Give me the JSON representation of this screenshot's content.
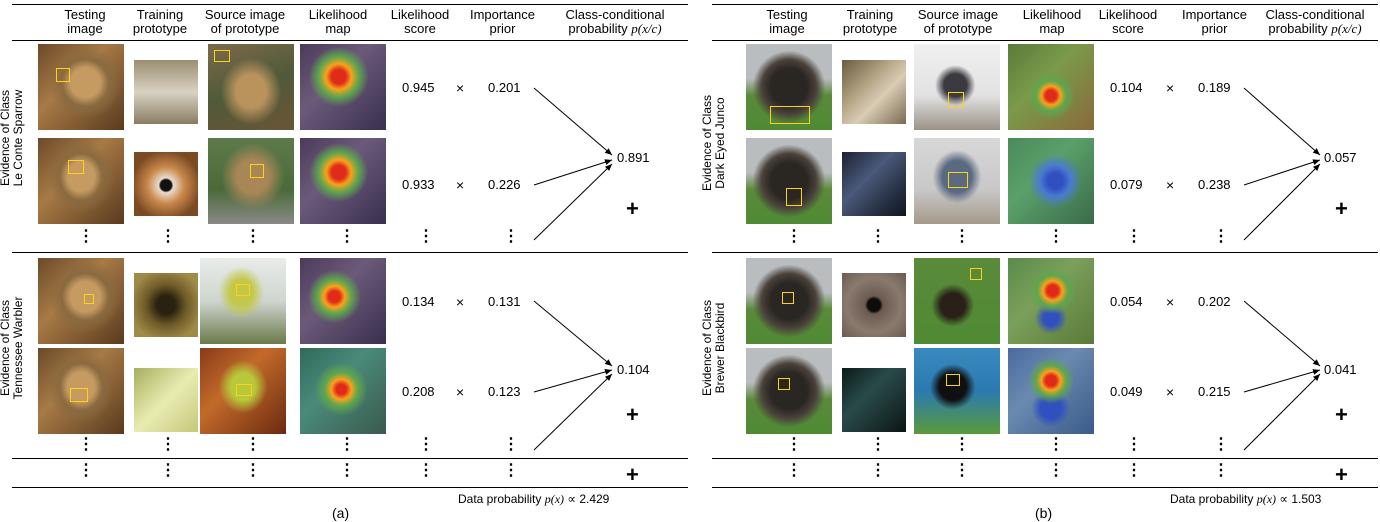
{
  "headers": {
    "testing_image": [
      "Testing",
      "image"
    ],
    "training_prototype": [
      "Training",
      "prototype"
    ],
    "source_image": [
      "Source image",
      "of prototype"
    ],
    "likelihood_map": [
      "Likelihood",
      "map"
    ],
    "likelihood_score": [
      "Likelihood",
      "score"
    ],
    "importance_prior": [
      "Importance",
      "prior"
    ],
    "class_conditional": [
      "Class-conditional",
      "probability"
    ],
    "class_conditional_formula": "p(x/c)"
  },
  "panel_a": {
    "caption": "(a)",
    "data_probability_label": "Data probability",
    "data_probability_formula": "p(x)",
    "proportional_symbol": "∝",
    "data_probability_value": "2.429",
    "groups": [
      {
        "label_line1": "Evidence of Class",
        "label_line2": "Le Conte Sparrow",
        "rows": [
          {
            "score": "0.945",
            "prior": "0.201"
          },
          {
            "score": "0.933",
            "prior": "0.226"
          }
        ],
        "result": "0.891"
      },
      {
        "label_line1": "Evidence of Class",
        "label_line2": "Tennessee Warbler",
        "rows": [
          {
            "score": "0.134",
            "prior": "0.131"
          },
          {
            "score": "0.208",
            "prior": "0.123"
          }
        ],
        "result": "0.104"
      }
    ]
  },
  "panel_b": {
    "caption": "(b)",
    "data_probability_label": "Data probability",
    "data_probability_formula": "p(x)",
    "proportional_symbol": "∝",
    "data_probability_value": "1.503",
    "groups": [
      {
        "label_line1": "Evidence of Class",
        "label_line2": "Dark Eyed Junco",
        "rows": [
          {
            "score": "0.104",
            "prior": "0.189"
          },
          {
            "score": "0.079",
            "prior": "0.238"
          }
        ],
        "result": "0.057"
      },
      {
        "label_line1": "Evidence of Class",
        "label_line2": "Brewer Blackbird",
        "rows": [
          {
            "score": "0.054",
            "prior": "0.202"
          },
          {
            "score": "0.049",
            "prior": "0.215"
          }
        ],
        "result": "0.041"
      }
    ]
  },
  "symbols": {
    "times": "×",
    "plus": "+",
    "vdots": "⋮"
  },
  "colors": {
    "bounding_box": "#ffd21a",
    "heatmap_hot": "#e02a1a",
    "heatmap_cool": "#3050c0",
    "grass": "#4f8a34",
    "sky_gray": "#b9bdbf"
  }
}
